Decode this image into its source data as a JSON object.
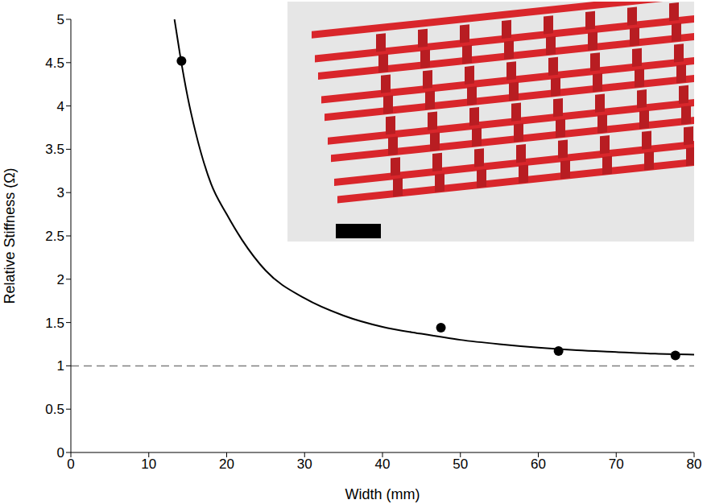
{
  "chart_data": {
    "type": "scatter",
    "xlabel": "Width (mm)",
    "ylabel": "Relative Stiffness (Ω)",
    "xlim": [
      0,
      80
    ],
    "xticks": [
      0,
      10,
      20,
      30,
      40,
      50,
      60,
      70,
      80
    ],
    "ylim": [
      0,
      5
    ],
    "yticks": [
      0,
      0.5,
      1,
      1.5,
      2,
      2.5,
      3,
      3.5,
      4,
      4.5,
      5
    ],
    "grid": false,
    "series": [
      {
        "type": "scatter",
        "color": "#000000",
        "marker": "circle",
        "x": [
          14.2,
          47.5,
          62.6,
          77.6
        ],
        "values": [
          4.52,
          1.44,
          1.17,
          1.12
        ]
      },
      {
        "type": "line",
        "color": "#000000",
        "line_style": "solid",
        "x": [
          13.3,
          14,
          15,
          16,
          18,
          20,
          22,
          25,
          30,
          35,
          40,
          45,
          50,
          55,
          60,
          65,
          70,
          75,
          80
        ],
        "values": [
          5.0,
          4.6,
          4.1,
          3.7,
          3.1,
          2.75,
          2.45,
          2.1,
          1.78,
          1.58,
          1.45,
          1.37,
          1.3,
          1.25,
          1.21,
          1.18,
          1.16,
          1.14,
          1.13
        ]
      }
    ],
    "reference_line": {
      "value": 1,
      "color": "#808080",
      "line_style": "dashed"
    }
  }
}
